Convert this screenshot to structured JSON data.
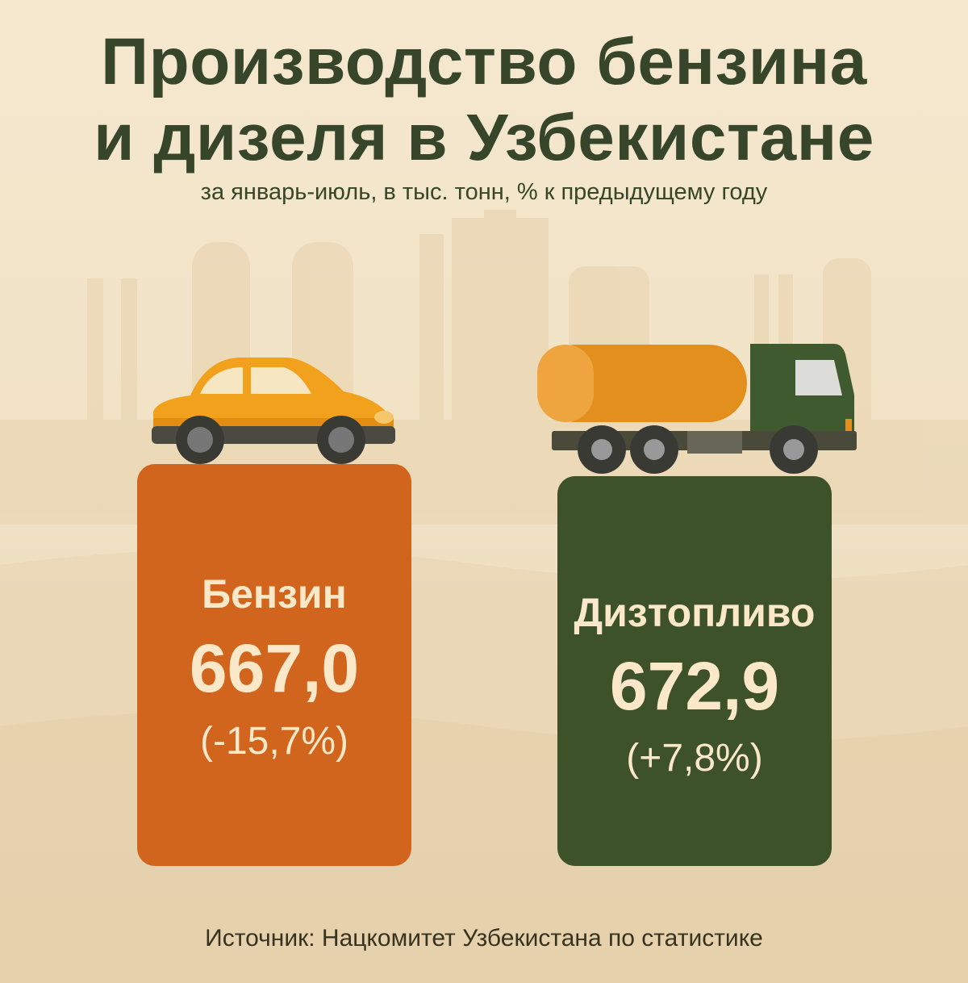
{
  "header": {
    "title_line1": "Производство бензина",
    "title_line2": "и дизеля в Узбекистане",
    "subtitle": "за январь-июль, в тыс. тонн, % к предыдущему году"
  },
  "items": [
    {
      "label": "Бензин",
      "value": "667,0",
      "change": "(-15,7%)",
      "icon": "car-icon",
      "color": "#d2651e"
    },
    {
      "label": "Дизтопливо",
      "value": "672,9",
      "change": "(+7,8%)",
      "icon": "tanker-truck-icon",
      "color": "#3d5229"
    }
  ],
  "footer": {
    "source": "Источник: Нацкомитет Узбекистана по статистике"
  },
  "colors": {
    "background": "#f3e5ca",
    "title": "#37462a",
    "box_text": "#fbe8c8"
  }
}
